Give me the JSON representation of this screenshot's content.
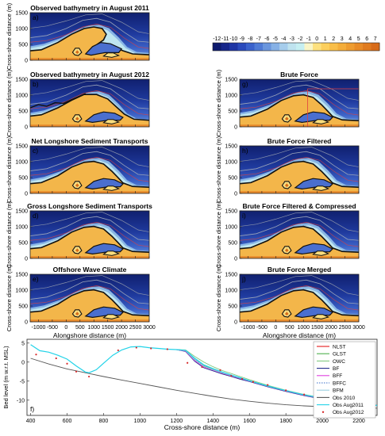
{
  "colorbar": {
    "ticks": [
      "-12",
      "-11",
      "-10",
      "-9",
      "-8",
      "-7",
      "-6",
      "-5",
      "-4",
      "-3",
      "-2",
      "-1",
      "0",
      "1",
      "2",
      "3",
      "4",
      "5",
      "6",
      "7"
    ],
    "colors": [
      "#0d1a6e",
      "#15258a",
      "#1e35a5",
      "#2a4abc",
      "#3a62cc",
      "#4f7bd6",
      "#6a96de",
      "#86b1e6",
      "#a6cdec",
      "#bfe3ef",
      "#c6eff2",
      "#f9f5c8",
      "#fde17f",
      "#fccf5d",
      "#f9be48",
      "#f4ad3a",
      "#ee9c30",
      "#e88b27",
      "#e07b1f",
      "#d86b18"
    ]
  },
  "panels": [
    {
      "id": "a",
      "letter": "a)",
      "title": "Observed bathymetry in August 2011",
      "variant": 0
    },
    {
      "id": "b",
      "letter": "b)",
      "title": "Observed bathymetry in August 2012",
      "variant": 1
    },
    {
      "id": "c",
      "letter": "c)",
      "title": "Net Longshore Sediment Transports",
      "variant": 2
    },
    {
      "id": "d",
      "letter": "d)",
      "title": "Gross Longshore Sediment Transports",
      "variant": 2
    },
    {
      "id": "e",
      "letter": "e)",
      "title": "Offshore Wave Climate",
      "variant": 2
    },
    {
      "id": "g",
      "letter": "g)",
      "title": "Brute Force",
      "variant": 3
    },
    {
      "id": "h",
      "letter": "h)",
      "title": "Brute Force Filtered",
      "variant": 2
    },
    {
      "id": "i",
      "letter": "i)",
      "title": "Brute Force Filtered & Compressed",
      "variant": 2
    },
    {
      "id": "j",
      "letter": "j)",
      "title": "Brute Force Merged",
      "variant": 2
    }
  ],
  "map_axes": {
    "ylabel": "Cross-shore distance (m)",
    "xlabel": "Alongshore distance (m)",
    "yticks": [
      "0",
      "500",
      "1000",
      "1500"
    ],
    "xticks": [
      "-1000",
      "-500",
      "0",
      "500",
      "1000",
      "1500",
      "2000",
      "2500",
      "3000"
    ]
  },
  "chart_data": {
    "type": "line",
    "panel_letter": "f)",
    "xlabel": "Cross-shore distance (m)",
    "ylabel": "Bed level (m w.r.t. MSL)",
    "xlim": [
      380,
      2300
    ],
    "ylim": [
      -14,
      6
    ],
    "xticks": [
      400,
      600,
      800,
      1000,
      1200,
      1400,
      1600,
      1800,
      2000,
      2200
    ],
    "yticks": [
      -10,
      -5,
      0,
      5
    ],
    "legend_position": "right",
    "series": [
      {
        "name": "NLST",
        "color": "#e41a1c",
        "style": "solid",
        "x": [
          1200,
          1250,
          1300,
          1350,
          1400,
          1450,
          1500,
          1550,
          1600,
          1700,
          1800,
          1900,
          2000,
          2100,
          2300
        ],
        "y": [
          3.3,
          3.0,
          0.5,
          -1.2,
          -2.0,
          -2.9,
          -3.6,
          -4.3,
          -5.0,
          -6.4,
          -7.6,
          -8.7,
          -9.6,
          -10.3,
          -11.4
        ]
      },
      {
        "name": "GLST",
        "color": "#4daf4a",
        "style": "solid",
        "x": [
          1200,
          1250,
          1300,
          1350,
          1400,
          1450,
          1500,
          1550,
          1600,
          1700,
          1800,
          1900,
          2000,
          2100,
          2300
        ],
        "y": [
          3.3,
          3.0,
          0.6,
          -1.0,
          -1.9,
          -2.8,
          -3.5,
          -4.2,
          -4.9,
          -6.3,
          -7.5,
          -8.6,
          -9.5,
          -10.3,
          -11.4
        ]
      },
      {
        "name": "OWC",
        "color": "#7fc97f",
        "style": "solid",
        "x": [
          1200,
          1250,
          1300,
          1350,
          1400,
          1450,
          1500,
          1550,
          1600,
          1700,
          1800,
          1900,
          2000,
          2100,
          2300
        ],
        "y": [
          3.3,
          3.2,
          1.5,
          0.0,
          -1.2,
          -2.2,
          -3.0,
          -3.8,
          -4.6,
          -6.1,
          -7.4,
          -8.5,
          -9.4,
          -10.2,
          -11.4
        ]
      },
      {
        "name": "BF",
        "color": "#1f2a8a",
        "style": "solid",
        "x": [
          1200,
          1250,
          1300,
          1350,
          1400,
          1450,
          1500,
          1550,
          1600,
          1700,
          1800,
          1900,
          2000,
          2100,
          2300
        ],
        "y": [
          3.3,
          2.8,
          0.2,
          -1.5,
          -2.3,
          -3.1,
          -3.8,
          -4.5,
          -5.1,
          -6.5,
          -7.7,
          -8.8,
          -9.7,
          -10.4,
          -11.4
        ]
      },
      {
        "name": "BFF",
        "color": "#e040e0",
        "style": "solid",
        "x": [
          1200,
          1250,
          1300,
          1350,
          1400,
          1450,
          1500,
          1550,
          1600,
          1700,
          1800,
          1900,
          2000,
          2100,
          2300
        ],
        "y": [
          3.3,
          2.9,
          0.4,
          -1.3,
          -2.1,
          -2.9,
          -3.6,
          -4.3,
          -5.0,
          -6.4,
          -7.6,
          -8.7,
          -9.6,
          -10.3,
          -11.4
        ]
      },
      {
        "name": "BFFC",
        "color": "#3a6ec9",
        "style": "dotted",
        "x": [
          1200,
          1250,
          1300,
          1350,
          1400,
          1450,
          1500,
          1550,
          1600,
          1700,
          1800,
          1900,
          2000,
          2100,
          2300
        ],
        "y": [
          3.3,
          3.1,
          0.8,
          -0.8,
          -1.8,
          -2.7,
          -3.4,
          -4.2,
          -4.9,
          -6.3,
          -7.5,
          -8.6,
          -9.5,
          -10.3,
          -11.4
        ]
      },
      {
        "name": "BFM",
        "color": "#9ad0e0",
        "style": "solid",
        "x": [
          1200,
          1250,
          1300,
          1350,
          1400,
          1450,
          1500,
          1550,
          1600,
          1700,
          1800,
          1900,
          2000,
          2100,
          2300
        ],
        "y": [
          3.3,
          3.0,
          0.6,
          -1.1,
          -2.0,
          -2.8,
          -3.5,
          -4.2,
          -4.9,
          -6.3,
          -7.5,
          -8.6,
          -9.5,
          -10.3,
          -11.4
        ]
      },
      {
        "name": "Obs 2010",
        "color": "#555555",
        "style": "solid",
        "x": [
          400,
          500,
          600,
          700,
          800,
          900,
          1000,
          1100,
          1200,
          1300,
          1400,
          1500,
          1600,
          1700,
          1800,
          1900,
          2000,
          2100,
          2200,
          2300
        ],
        "y": [
          1.0,
          -0.5,
          -1.8,
          -2.8,
          -3.8,
          -4.7,
          -5.6,
          -6.5,
          -7.4,
          -8.2,
          -9.0,
          -9.7,
          -10.3,
          -10.8,
          -11.2,
          -11.5,
          -11.7,
          -11.9,
          -12.0,
          -12.1
        ]
      },
      {
        "name": "Obs Aug2011",
        "color": "#22d3e8",
        "style": "solid",
        "x": [
          400,
          450,
          500,
          550,
          600,
          650,
          700,
          720,
          760,
          800,
          850,
          900,
          950,
          1000,
          1050,
          1100,
          1150,
          1200,
          1250,
          1300,
          1350,
          1400,
          1450,
          1500,
          1550,
          1600,
          1700,
          1800,
          1900,
          2000,
          2100,
          2200,
          2300
        ],
        "y": [
          4.6,
          3.0,
          2.6,
          1.8,
          0.8,
          -1.0,
          -2.6,
          -2.8,
          -2.0,
          -0.3,
          1.8,
          3.2,
          4.0,
          4.1,
          3.8,
          3.6,
          3.4,
          3.3,
          3.1,
          1.0,
          -0.7,
          -1.7,
          -2.6,
          -3.4,
          -4.1,
          -4.9,
          -6.3,
          -7.5,
          -8.6,
          -9.5,
          -10.3,
          -10.9,
          -11.4
        ]
      },
      {
        "name": "Obs Aug2012",
        "color": "#d62728",
        "style": "markers",
        "x": [
          430,
          540,
          600,
          650,
          720,
          880,
          980,
          1060,
          1150,
          1260,
          1340,
          1440,
          1500,
          1560,
          1620,
          1700,
          1800,
          1900,
          2000,
          2100,
          2200
        ],
        "y": [
          2.0,
          1.0,
          -0.4,
          -2.5,
          -3.8,
          3.1,
          3.8,
          3.6,
          3.4,
          -0.2,
          -1.3,
          -2.1,
          -3.6,
          -4.4,
          -5.2,
          -6.0,
          -7.4,
          -8.5,
          -9.5,
          -10.2,
          -10.9
        ]
      }
    ]
  }
}
